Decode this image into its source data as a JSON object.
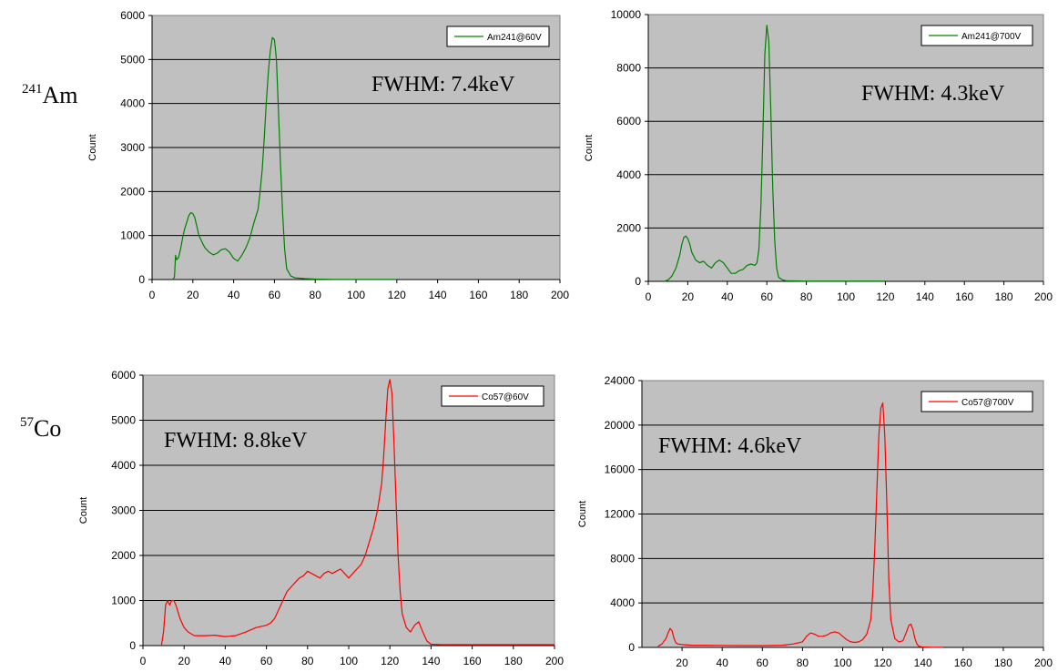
{
  "row_labels": {
    "am": {
      "sup": "241",
      "text": "Am"
    },
    "co": {
      "sup": "57",
      "text": "Co"
    }
  },
  "colors": {
    "am_series": "#008000",
    "co_series": "#ff0000",
    "plot_bg": "#c0c0c0",
    "grid": "#000000"
  },
  "chart_data": [
    {
      "type": "line",
      "legend": "Am241@60V",
      "legend_position": "top-right",
      "annotation": "FWHM: 7.4keV",
      "ylabel": "Count",
      "xlim": [
        0,
        200
      ],
      "ylim": [
        0,
        6000
      ],
      "x_ticks": [
        0,
        20,
        40,
        60,
        80,
        100,
        120,
        140,
        160,
        180,
        200
      ],
      "y_ticks": [
        0,
        1000,
        2000,
        3000,
        4000,
        5000,
        6000
      ],
      "grid": true,
      "series": [
        {
          "name": "Am241@60V",
          "x": [
            10,
            11,
            11.5,
            12,
            13,
            14,
            15,
            16,
            17,
            18,
            19,
            20,
            21,
            22,
            23,
            24,
            25,
            26,
            28,
            30,
            32,
            34,
            36,
            38,
            40,
            42,
            44,
            46,
            48,
            50,
            52,
            53,
            54,
            55,
            56,
            57,
            58,
            59,
            60,
            61,
            62,
            63,
            64,
            65,
            66,
            68,
            70,
            75,
            80,
            90,
            100,
            110,
            120
          ],
          "y": [
            0,
            50,
            550,
            450,
            500,
            700,
            950,
            1150,
            1300,
            1450,
            1520,
            1500,
            1400,
            1200,
            1000,
            900,
            800,
            720,
            620,
            560,
            600,
            680,
            700,
            620,
            480,
            420,
            550,
            720,
            950,
            1300,
            1600,
            2000,
            2500,
            3200,
            4000,
            4700,
            5200,
            5500,
            5450,
            5000,
            3800,
            2600,
            1500,
            700,
            250,
            80,
            40,
            20,
            10,
            5,
            5,
            5,
            5
          ]
        }
      ]
    },
    {
      "type": "line",
      "legend": "Am241@700V",
      "legend_position": "top-right",
      "annotation": "FWHM: 4.3keV",
      "ylabel": "Count",
      "xlim": [
        0,
        200
      ],
      "ylim": [
        0,
        10000
      ],
      "x_ticks": [
        0,
        20,
        40,
        60,
        80,
        100,
        120,
        140,
        160,
        180,
        200
      ],
      "y_ticks": [
        0,
        2000,
        4000,
        6000,
        8000,
        10000
      ],
      "grid": true,
      "series": [
        {
          "name": "Am241@700V",
          "x": [
            8,
            10,
            12,
            14,
            16,
            17,
            18,
            19,
            20,
            21,
            22,
            24,
            26,
            28,
            30,
            32,
            34,
            36,
            38,
            40,
            42,
            44,
            46,
            48,
            50,
            52,
            54,
            55,
            56,
            57,
            58,
            59,
            60,
            61,
            62,
            63,
            64,
            65,
            66,
            68,
            70,
            80,
            90,
            100,
            110,
            120
          ],
          "y": [
            0,
            50,
            200,
            500,
            1000,
            1400,
            1650,
            1700,
            1600,
            1400,
            1100,
            800,
            700,
            750,
            600,
            500,
            700,
            800,
            700,
            500,
            300,
            300,
            400,
            450,
            600,
            650,
            600,
            700,
            1200,
            2800,
            5500,
            8500,
            9600,
            9000,
            6500,
            3500,
            1500,
            500,
            150,
            50,
            20,
            10,
            10,
            10,
            10,
            10
          ]
        }
      ]
    },
    {
      "type": "line",
      "legend": "Co57@60V",
      "legend_position": "top-right",
      "annotation": "FWHM: 8.8keV",
      "ylabel": "Count",
      "xlim": [
        0,
        200
      ],
      "ylim": [
        0,
        6000
      ],
      "x_ticks": [
        0,
        20,
        40,
        60,
        80,
        100,
        120,
        140,
        160,
        180,
        200
      ],
      "y_ticks": [
        0,
        1000,
        2000,
        3000,
        4000,
        5000,
        6000
      ],
      "grid": true,
      "series": [
        {
          "name": "Co57@60V",
          "x": [
            9,
            10,
            11,
            12,
            13,
            14,
            15,
            16,
            18,
            20,
            22,
            25,
            30,
            35,
            40,
            45,
            50,
            55,
            60,
            62,
            64,
            66,
            68,
            70,
            72,
            74,
            76,
            78,
            80,
            82,
            84,
            86,
            88,
            90,
            92,
            94,
            96,
            98,
            100,
            102,
            104,
            106,
            108,
            110,
            112,
            114,
            116,
            117,
            118,
            119,
            120,
            121,
            122,
            123,
            124,
            125,
            126,
            128,
            130,
            132,
            134,
            136,
            138,
            140,
            145,
            150,
            160,
            180,
            200
          ],
          "y": [
            0,
            300,
            900,
            1000,
            900,
            1000,
            1000,
            900,
            600,
            400,
            300,
            220,
            220,
            230,
            200,
            220,
            300,
            400,
            450,
            500,
            600,
            800,
            1000,
            1200,
            1300,
            1400,
            1500,
            1550,
            1650,
            1600,
            1550,
            1500,
            1600,
            1650,
            1600,
            1650,
            1700,
            1600,
            1500,
            1600,
            1700,
            1800,
            2000,
            2300,
            2600,
            3000,
            3600,
            4200,
            5000,
            5700,
            5900,
            5600,
            4500,
            3200,
            2000,
            1200,
            700,
            400,
            300,
            450,
            530,
            300,
            100,
            30,
            20,
            20,
            20,
            20,
            20
          ]
        }
      ]
    },
    {
      "type": "line",
      "legend": "Co57@700V",
      "legend_position": "top-right",
      "annotation": "FWHM: 4.6keV",
      "ylabel": "Count",
      "xlim": [
        0,
        200
      ],
      "ylim": [
        0,
        24000
      ],
      "x_ticks": [
        20,
        40,
        60,
        80,
        100,
        120,
        140,
        160,
        180,
        200
      ],
      "y_ticks": [
        0,
        4000,
        8000,
        12000,
        16000,
        20000,
        24000
      ],
      "grid": true,
      "series": [
        {
          "name": "Co57@700V",
          "x": [
            8,
            10,
            12,
            13,
            14,
            15,
            16,
            17,
            18,
            20,
            25,
            30,
            40,
            50,
            60,
            70,
            75,
            80,
            82,
            84,
            86,
            88,
            90,
            92,
            94,
            96,
            98,
            100,
            102,
            104,
            106,
            108,
            110,
            112,
            114,
            115,
            116,
            117,
            118,
            119,
            120,
            121,
            122,
            123,
            124,
            126,
            128,
            130,
            132,
            133,
            134,
            135,
            136,
            137,
            138,
            140,
            145,
            150
          ],
          "y": [
            100,
            300,
            800,
            1300,
            1700,
            1500,
            800,
            400,
            300,
            250,
            200,
            200,
            180,
            160,
            160,
            200,
            300,
            500,
            1000,
            1300,
            1200,
            1000,
            1000,
            1100,
            1300,
            1400,
            1300,
            1000,
            700,
            500,
            450,
            500,
            700,
            1200,
            2500,
            5000,
            9000,
            14000,
            19000,
            21500,
            22000,
            19000,
            13000,
            6000,
            2500,
            800,
            500,
            600,
            1500,
            2000,
            2100,
            1600,
            800,
            300,
            100,
            30,
            20,
            20
          ]
        }
      ]
    }
  ]
}
